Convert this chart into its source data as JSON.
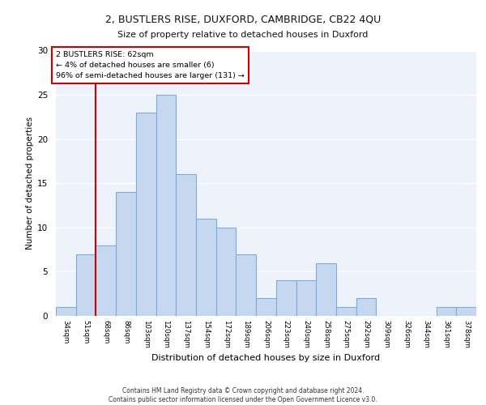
{
  "title1": "2, BUSTLERS RISE, DUXFORD, CAMBRIDGE, CB22 4QU",
  "title2": "Size of property relative to detached houses in Duxford",
  "xlabel": "Distribution of detached houses by size in Duxford",
  "ylabel": "Number of detached properties",
  "bar_labels": [
    "34sqm",
    "51sqm",
    "68sqm",
    "86sqm",
    "103sqm",
    "120sqm",
    "137sqm",
    "154sqm",
    "172sqm",
    "189sqm",
    "206sqm",
    "223sqm",
    "240sqm",
    "258sqm",
    "275sqm",
    "292sqm",
    "309sqm",
    "326sqm",
    "344sqm",
    "361sqm",
    "378sqm"
  ],
  "bar_values": [
    1,
    7,
    8,
    14,
    23,
    25,
    16,
    11,
    10,
    7,
    2,
    4,
    4,
    6,
    1,
    2,
    0,
    0,
    0,
    1,
    1
  ],
  "bar_color": "#c5d8f0",
  "bar_edge_color": "#7aadda",
  "vline_color": "#cc0000",
  "annotation_text": "2 BUSTLERS RISE: 62sqm\n← 4% of detached houses are smaller (6)\n96% of semi-detached houses are larger (131) →",
  "annotation_box_edge": "#cc0000",
  "ylim": [
    0,
    30
  ],
  "yticks": [
    0,
    5,
    10,
    15,
    20,
    25,
    30
  ],
  "bg_color": "#eef2fa",
  "grid_color": "#ffffff",
  "footer_line1": "Contains HM Land Registry data © Crown copyright and database right 2024.",
  "footer_line2": "Contains public sector information licensed under the Open Government Licence v3.0."
}
